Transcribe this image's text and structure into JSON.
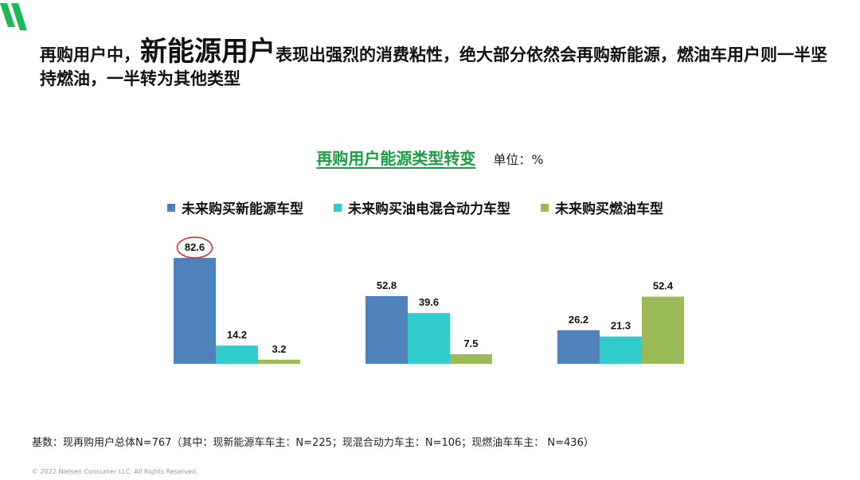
{
  "headline": {
    "part1": "再购用户中，",
    "emphasis": "新能源用户",
    "part2": "表现出强烈的消费粘性，绝大部分依然会再购新能源，燃油车用户则一半坚持燃油，一半转为其他类型"
  },
  "chart_title": "再购用户能源类型转变",
  "chart_unit": "单位：%",
  "footnote": "基数：现再购用户总体N=767（其中：现新能源车车主：N=225；现混合动力车主：N=106；现燃油车车主： N=436）",
  "copyright": "© 2022 Nielsen Consumer LLC. All Rights Reserved.",
  "colors": {
    "brand_green": "#1a9e3f",
    "ev": "#4f81bd",
    "hybrid": "#33cccc",
    "fuel": "#9bbb59",
    "highlight_circle": "#d9262c"
  },
  "chart_data": {
    "type": "bar",
    "title": "再购用户能源类型转变",
    "unit": "%",
    "groups": 3,
    "series": [
      {
        "name": "未来购买新能源车型",
        "color": "#4f81bd",
        "values": [
          82.6,
          52.8,
          26.2
        ]
      },
      {
        "name": "未来购买油电混合动力车型",
        "color": "#33cccc",
        "values": [
          14.2,
          39.6,
          21.3
        ]
      },
      {
        "name": "未来购买燃油车型",
        "color": "#9bbb59",
        "values": [
          3.2,
          7.5,
          52.4
        ]
      }
    ],
    "highlighted": {
      "series": 0,
      "group": 0
    },
    "legend_position": "top",
    "grid": false
  }
}
